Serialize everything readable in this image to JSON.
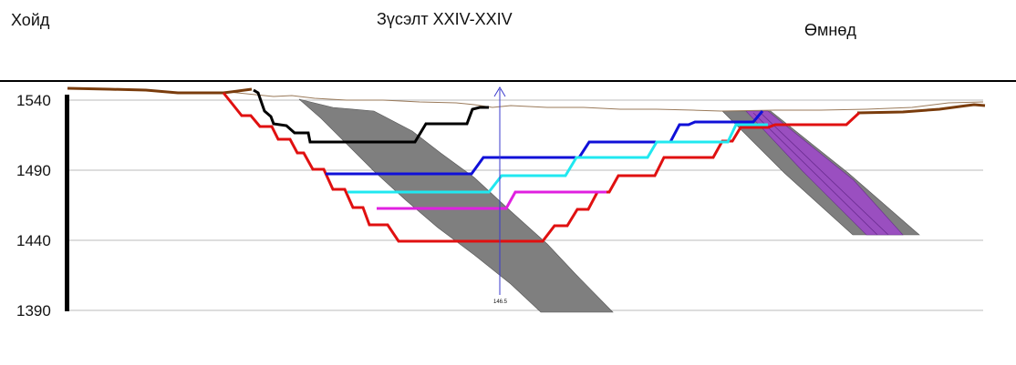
{
  "header": {
    "north_label": "Хойд",
    "section_title": "Зүсэлт XXIV-XXIV",
    "south_label": "Өмнөд"
  },
  "axis": {
    "ticks": [
      "1540",
      "1490",
      "1440",
      "1390"
    ]
  },
  "annotation": {
    "depth_label": "146.5"
  },
  "colors": {
    "terrain": "#7a3c0c",
    "pit_black": "#000000",
    "pit_red": "#e01010",
    "pit_blue": "#1010d8",
    "pit_cyan": "#20e8f0",
    "pit_magenta": "#e020e0",
    "orebody_gray": "#7f7f7f",
    "orebody_purple": "#9a4fc0",
    "gridline": "#bbbbbb",
    "drillhole": "#3a3acc"
  }
}
